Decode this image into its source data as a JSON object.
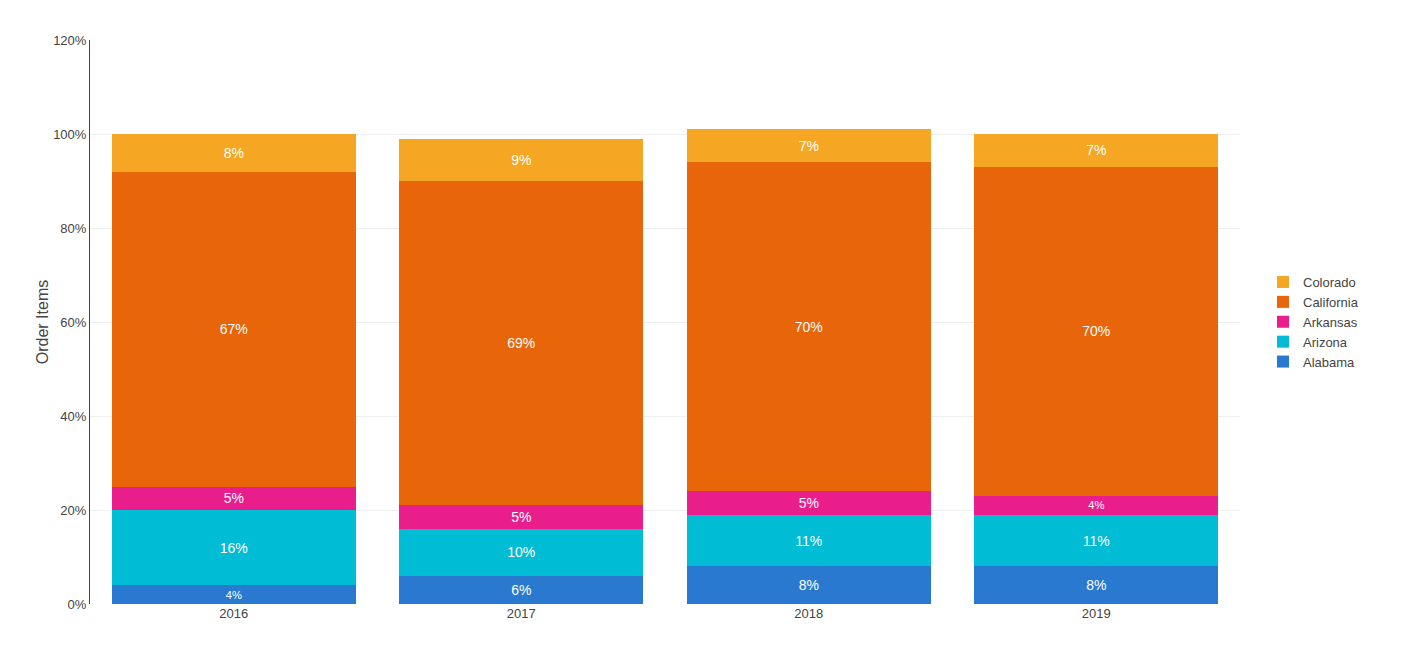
{
  "chart_data": {
    "type": "bar",
    "stacked": true,
    "data_labels": true,
    "grid": true,
    "legend": "right",
    "ylabel": "Order Items",
    "categories": [
      "2016",
      "2017",
      "2018",
      "2019"
    ],
    "series": [
      {
        "name": "Alabama",
        "color": "#2979d0",
        "values": [
          4,
          6,
          8,
          8
        ],
        "value_labels": [
          "4%",
          "6%",
          "8%",
          "8%"
        ]
      },
      {
        "name": "Arizona",
        "color": "#00bcd4",
        "values": [
          16,
          10,
          11,
          11
        ],
        "value_labels": [
          "16%",
          "10%",
          "11%",
          "11%"
        ]
      },
      {
        "name": "Arkansas",
        "color": "#e91e8c",
        "values": [
          5,
          5,
          5,
          4
        ],
        "value_labels": [
          "5%",
          "5%",
          "5%",
          "4%"
        ]
      },
      {
        "name": "California",
        "color": "#e8650a",
        "values": [
          67,
          69,
          70,
          70
        ],
        "value_labels": [
          "67%",
          "69%",
          "70%",
          "70%"
        ]
      },
      {
        "name": "Colorado",
        "color": "#f5a623",
        "values": [
          8,
          9,
          7,
          7
        ],
        "value_labels": [
          "8%",
          "9%",
          "7%",
          "7%"
        ]
      }
    ],
    "ylim": [
      0,
      120
    ],
    "yticks": [
      {
        "value": 0,
        "label": "0%"
      },
      {
        "value": 20,
        "label": "20%"
      },
      {
        "value": 40,
        "label": "40%"
      },
      {
        "value": 60,
        "label": "60%"
      },
      {
        "value": 80,
        "label": "80%"
      },
      {
        "value": 100,
        "label": "100%"
      },
      {
        "value": 120,
        "label": "120%"
      }
    ]
  }
}
